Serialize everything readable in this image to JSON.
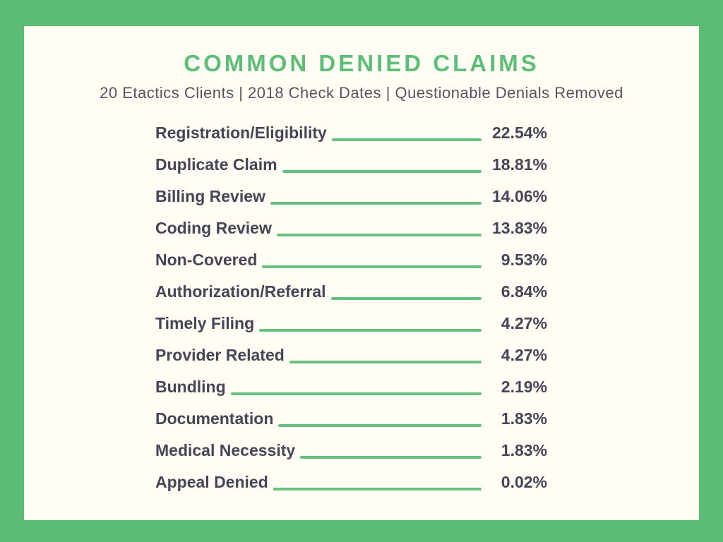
{
  "title": "COMMON DENIED CLAIMS",
  "subtitle": "20 Etactics Clients | 2018 Check Dates | Questionable Denials Removed",
  "colors": {
    "frame_green": "#5dbc74",
    "card_cream": "#fffdf4",
    "title_green": "#5cbe77",
    "leader_line_green": "#65c17d",
    "text_dark": "#474457",
    "subtitle_gray": "#56525f"
  },
  "chart_data": {
    "type": "bar",
    "orientation": "horizontal-leader-list",
    "title": "COMMON DENIED CLAIMS",
    "subtitle": "20 Etactics Clients | 2018 Check Dates | Questionable Denials Removed",
    "categories": [
      "Registration/Eligibility",
      "Duplicate Claim",
      "Billing Review",
      "Coding Review",
      "Non-Covered",
      "Authorization/Referral",
      "Timely Filing",
      "Provider Related",
      "Bundling",
      "Documentation",
      "Medical Necessity",
      "Appeal Denied"
    ],
    "values": [
      22.54,
      18.81,
      14.06,
      13.83,
      9.53,
      6.84,
      4.27,
      4.27,
      2.19,
      1.83,
      1.83,
      0.02
    ],
    "value_labels": [
      "22.54%",
      "18.81%",
      "14.06%",
      "13.83%",
      "9.53%",
      "6.84%",
      "4.27%",
      "4.27%",
      "2.19%",
      "1.83%",
      "1.83%",
      "0.02%"
    ],
    "xlabel": "",
    "ylabel": "",
    "unit": "%",
    "legend": null,
    "grid": false
  }
}
